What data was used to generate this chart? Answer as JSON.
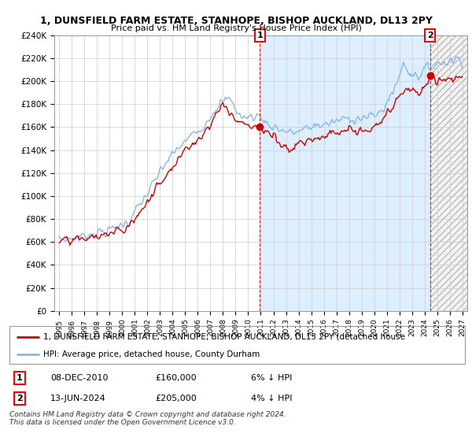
{
  "title": "1, DUNSFIELD FARM ESTATE, STANHOPE, BISHOP AUCKLAND, DL13 2PY",
  "subtitle": "Price paid vs. HM Land Registry's House Price Index (HPI)",
  "ylim": [
    0,
    240000
  ],
  "yticks": [
    0,
    20000,
    40000,
    60000,
    80000,
    100000,
    120000,
    140000,
    160000,
    180000,
    200000,
    220000,
    240000
  ],
  "ytick_labels": [
    "£0",
    "£20K",
    "£40K",
    "£60K",
    "£80K",
    "£100K",
    "£120K",
    "£140K",
    "£160K",
    "£180K",
    "£200K",
    "£220K",
    "£240K"
  ],
  "sale1_x": 2010.92,
  "sale1_y": 160000,
  "sale1_date": "08-DEC-2010",
  "sale1_price": "£160,000",
  "sale1_hpi": "6% ↓ HPI",
  "sale2_x": 2024.44,
  "sale2_y": 205000,
  "sale2_date": "13-JUN-2024",
  "sale2_price": "£205,000",
  "sale2_hpi": "4% ↓ HPI",
  "red_color": "#cc0000",
  "blue_color": "#88b8e8",
  "fill_color": "#ddeeff",
  "legend_line1": "1, DUNSFIELD FARM ESTATE, STANHOPE, BISHOP AUCKLAND, DL13 2PY (detached house",
  "legend_line2": "HPI: Average price, detached house, County Durham",
  "footer": "Contains HM Land Registry data © Crown copyright and database right 2024.\nThis data is licensed under the Open Government Licence v3.0.",
  "grid_color": "#cccccc",
  "xlim_left": 1994.6,
  "xlim_right": 2027.4,
  "xtick_start": 1995,
  "xtick_end": 2027
}
